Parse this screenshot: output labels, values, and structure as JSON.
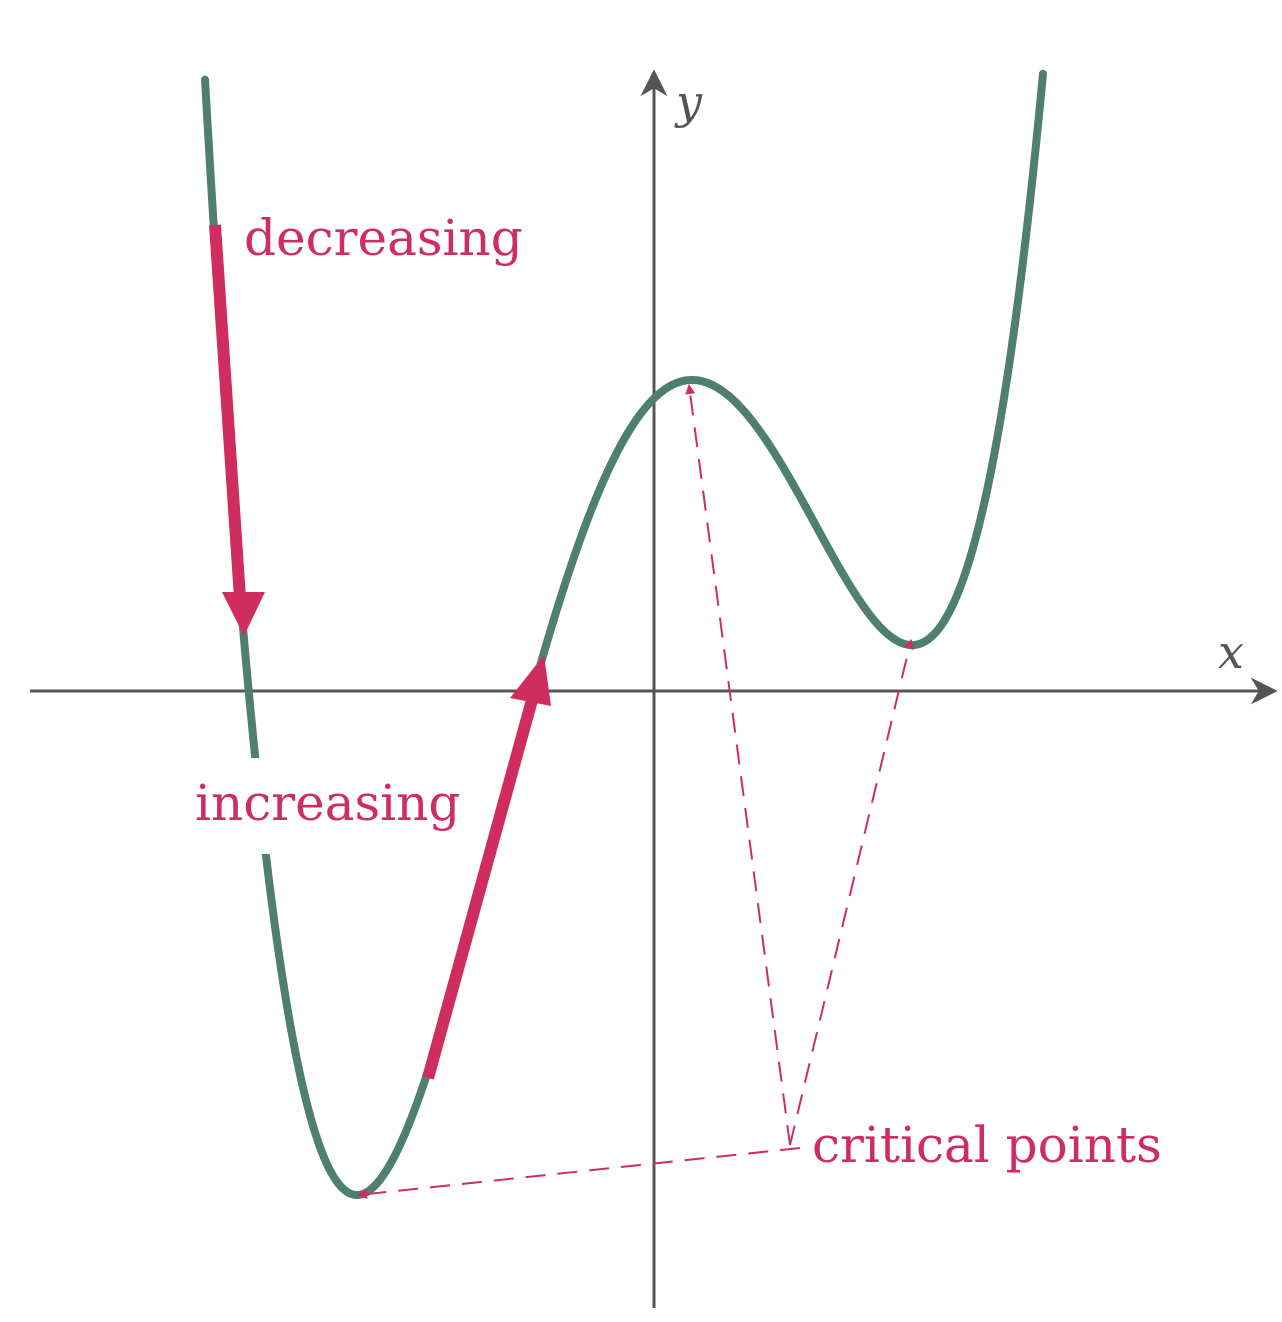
{
  "axes": {
    "x_label": "x",
    "y_label": "y"
  },
  "annotations": {
    "decreasing": "decreasing",
    "increasing": "increasing",
    "critical_points": "critical points"
  },
  "colors": {
    "curve": "#4f7f6d",
    "highlight": "#cf2c5f",
    "axis": "#555555",
    "background": "#ffffff"
  }
}
